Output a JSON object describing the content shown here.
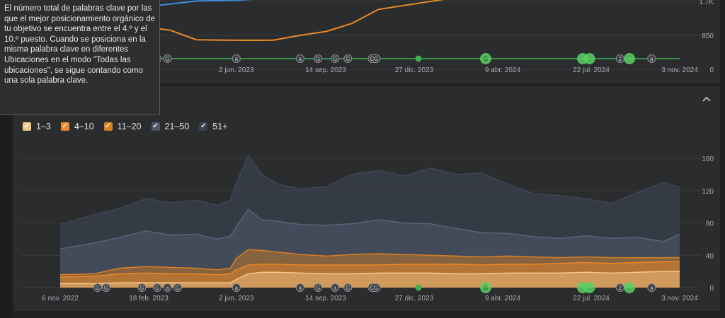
{
  "tooltip": {
    "text": "El número total de palabras clave por las que el mejor posicionamiento orgánico de tu objetivo se encuentra entre el 4.º y el 10.º puesto. Cuando se posiciona en la misma palabra clave en diferentes Ubicaciones en el modo \"Todas las ubicaciones\", se sigue contando como una sola palabra clave."
  },
  "icons": {
    "collapse": "chevron-up-icon",
    "check": "check-icon"
  },
  "chart_data": [
    {
      "type": "line",
      "title": "",
      "x_tick_labels": [
        "2 jun. 2023",
        "14 sep. 2023",
        "27 dic. 2023",
        "9 abr. 2024",
        "22 jul. 2024",
        "3 nov. 2024"
      ],
      "y_tick_labels": [
        "850",
        "0"
      ],
      "partial_top_label": "1.7K",
      "x_range": [
        "2022-11-06",
        "2024-11-03"
      ],
      "series": [
        {
          "color": "#3d8fe0",
          "x": [
            "2022-11-06",
            "2023-01-15",
            "2023-03-01",
            "2023-04-15",
            "2023-06-01",
            "2023-07-15",
            "2023-08-15",
            "2023-09-15"
          ],
          "y": [
            1250,
            1420,
            1600,
            1710,
            1730,
            1780,
            1820,
            1850
          ]
        },
        {
          "color": "#e8892a",
          "x": [
            "2022-11-06",
            "2022-12-15",
            "2023-01-15",
            "2023-02-15",
            "2023-03-15",
            "2023-04-15",
            "2023-05-15",
            "2023-06-15",
            "2023-07-15",
            "2023-08-15",
            "2023-09-15",
            "2023-10-15",
            "2023-11-15",
            "2024-03-01",
            "2024-04-01",
            "2024-05-01",
            "2024-06-01",
            "2024-07-01",
            "2024-08-01",
            "2024-09-01",
            "2024-10-01",
            "2024-11-03"
          ],
          "y": [
            960,
            1020,
            1060,
            1050,
            980,
            740,
            730,
            725,
            730,
            850,
            950,
            1150,
            1500,
            1850,
            1780,
            1820,
            1800,
            1770,
            1760,
            1800,
            1870,
            1920
          ]
        }
      ],
      "event_markers": [
        {
          "x": "2023-02-10",
          "label": "G"
        },
        {
          "x": "2023-02-28",
          "label": "a"
        },
        {
          "x": "2023-03-12",
          "label": "G"
        },
        {
          "x": "2023-06-01",
          "label": "a"
        },
        {
          "x": "2023-08-15",
          "label": "a"
        },
        {
          "x": "2023-09-05",
          "label": "G"
        },
        {
          "x": "2023-09-25",
          "label": "G"
        },
        {
          "x": "2023-10-10",
          "label": "G"
        },
        {
          "x": "2023-11-10",
          "label": "CG"
        },
        {
          "x": "2024-01-01",
          "label": ""
        },
        {
          "x": "2024-03-20",
          "label": "G"
        },
        {
          "x": "2024-07-12",
          "label": ""
        },
        {
          "x": "2024-07-20",
          "label": ""
        },
        {
          "x": "2024-08-25",
          "label": "2"
        },
        {
          "x": "2024-09-05",
          "label": ""
        },
        {
          "x": "2024-10-01",
          "label": "a"
        }
      ]
    },
    {
      "type": "area",
      "title": "",
      "legend": [
        {
          "name": "1–3",
          "color": "#f3c98b",
          "checked": true
        },
        {
          "name": "4–10",
          "color": "#e8892a",
          "checked": true
        },
        {
          "name": "11–20",
          "color": "#d9801f",
          "checked": true
        },
        {
          "name": "21–50",
          "color": "#4f5869",
          "checked": true
        },
        {
          "name": "51+",
          "color": "#3a4250",
          "checked": true
        }
      ],
      "y_ticks": [
        0,
        40,
        80,
        120,
        160
      ],
      "ylim": [
        0,
        165
      ],
      "x_tick_labels": [
        "6 nov. 2022",
        "18 feb. 2023",
        "2 jun. 2023",
        "14 sep. 2023",
        "27 dic. 2023",
        "9 abr. 2024",
        "22 jul. 2024",
        "3 nov. 2024"
      ],
      "x_range": [
        "2022-11-06",
        "2024-11-03"
      ],
      "x": [
        "2022-11-06",
        "2022-12-15",
        "2023-01-15",
        "2023-02-15",
        "2023-03-15",
        "2023-04-15",
        "2023-05-10",
        "2023-05-25",
        "2023-06-01",
        "2023-06-15",
        "2023-07-01",
        "2023-07-20",
        "2023-08-15",
        "2023-09-15",
        "2023-10-15",
        "2023-11-15",
        "2023-12-15",
        "2024-01-15",
        "2024-02-15",
        "2024-03-15",
        "2024-04-15",
        "2024-05-15",
        "2024-06-15",
        "2024-07-15",
        "2024-08-15",
        "2024-09-15",
        "2024-10-15",
        "2024-11-03"
      ],
      "series": [
        {
          "name": "1–3",
          "values": [
            5,
            5,
            6,
            6,
            6,
            6,
            6,
            6,
            10,
            17,
            19,
            19,
            18,
            17,
            17,
            18,
            18,
            18,
            17,
            17,
            18,
            18,
            18,
            19,
            18,
            19,
            20,
            20
          ]
        },
        {
          "name": "4–10",
          "values": [
            13,
            14,
            17,
            18,
            17,
            17,
            16,
            17,
            22,
            28,
            29,
            29,
            28,
            28,
            28,
            28,
            29,
            29,
            29,
            28,
            29,
            29,
            30,
            31,
            30,
            31,
            32,
            32
          ]
        },
        {
          "name": "11–20",
          "values": [
            16,
            17,
            24,
            26,
            25,
            24,
            22,
            24,
            36,
            47,
            46,
            44,
            41,
            39,
            41,
            42,
            41,
            40,
            39,
            38,
            39,
            38,
            37,
            38,
            37,
            37,
            37,
            37
          ]
        },
        {
          "name": "21–50",
          "values": [
            48,
            55,
            62,
            70,
            65,
            66,
            60,
            64,
            75,
            97,
            84,
            82,
            78,
            77,
            79,
            84,
            80,
            79,
            73,
            68,
            67,
            63,
            61,
            64,
            61,
            62,
            57,
            66
          ]
        },
        {
          "name": "51+",
          "values": [
            78,
            90,
            98,
            110,
            105,
            108,
            102,
            108,
            130,
            163,
            140,
            128,
            122,
            125,
            140,
            145,
            138,
            148,
            140,
            142,
            128,
            116,
            114,
            110,
            104,
            118,
            130,
            124
          ]
        }
      ],
      "event_markers": [
        {
          "x": "2022-12-20",
          "label": "G"
        },
        {
          "x": "2022-12-30",
          "label": "G"
        },
        {
          "x": "2023-02-10",
          "label": "G"
        },
        {
          "x": "2023-02-28",
          "label": "G"
        },
        {
          "x": "2023-03-12",
          "label": "a"
        },
        {
          "x": "2023-03-24",
          "label": "G"
        },
        {
          "x": "2023-06-01",
          "label": "a"
        },
        {
          "x": "2023-08-15",
          "label": "a"
        },
        {
          "x": "2023-09-05",
          "label": "G"
        },
        {
          "x": "2023-09-25",
          "label": "a"
        },
        {
          "x": "2023-10-10",
          "label": "G"
        },
        {
          "x": "2023-11-10",
          "label": "CG"
        },
        {
          "x": "2024-01-01",
          "label": ""
        },
        {
          "x": "2024-03-20",
          "label": "G"
        },
        {
          "x": "2024-07-12",
          "label": ""
        },
        {
          "x": "2024-07-20",
          "label": ""
        },
        {
          "x": "2024-08-25",
          "label": "2"
        },
        {
          "x": "2024-09-05",
          "label": ""
        },
        {
          "x": "2024-10-01",
          "label": "a"
        }
      ]
    }
  ]
}
